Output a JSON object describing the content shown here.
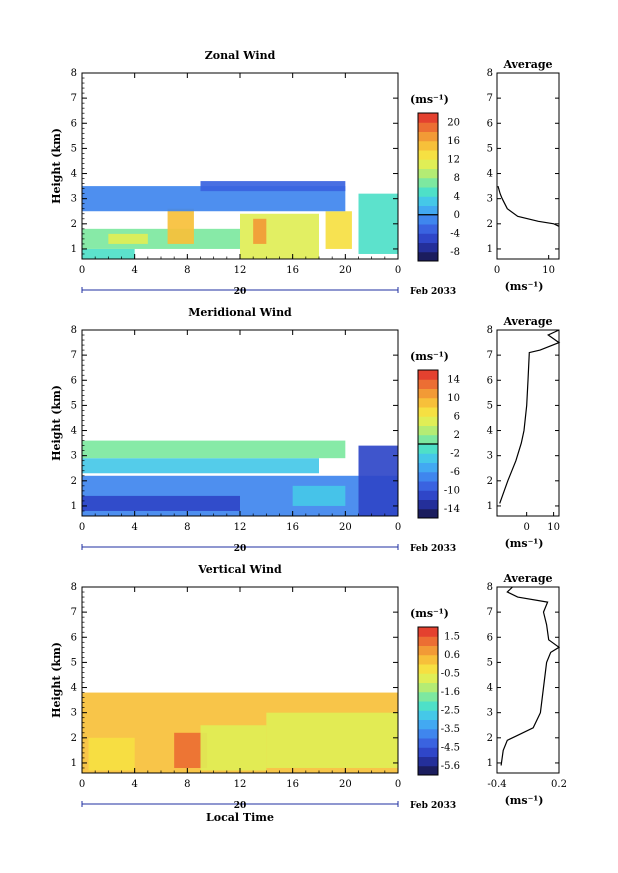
{
  "chart_data": [
    {
      "type": "heatmap",
      "title": "Zonal Wind",
      "ylabel": "Height (km)",
      "x_ticks": [
        "0",
        "4",
        "8",
        "12",
        "16",
        "20",
        "0"
      ],
      "y_ticks": [
        "1",
        "2",
        "3",
        "4",
        "5",
        "6",
        "7",
        "8"
      ],
      "xlim": [
        0,
        24
      ],
      "ylim": [
        0.6,
        8
      ],
      "date_label": "Feb 2033",
      "day_label": "20",
      "colorbar": {
        "unit": "(ms⁻¹)",
        "ticks": [
          "20",
          "16",
          "12",
          "8",
          "4",
          "0",
          "-4",
          "-8"
        ],
        "min": -10,
        "max": 22,
        "zero_line": 0
      },
      "regions": [
        {
          "t0": 0.0,
          "t1": 4.0,
          "h0": 0.6,
          "h1": 1.0,
          "v": 4
        },
        {
          "t0": 0.0,
          "t1": 12.0,
          "h0": 1.0,
          "h1": 1.8,
          "v": 6
        },
        {
          "t0": 2.0,
          "t1": 5.0,
          "h0": 1.2,
          "h1": 1.6,
          "v": 10
        },
        {
          "t0": 6.5,
          "t1": 8.5,
          "h0": 1.2,
          "h1": 2.6,
          "v": 14
        },
        {
          "t0": 12.0,
          "t1": 18.0,
          "h0": 0.6,
          "h1": 2.4,
          "v": 10
        },
        {
          "t0": 13.0,
          "t1": 14.0,
          "h0": 1.2,
          "h1": 2.2,
          "v": 16
        },
        {
          "t0": 18.5,
          "t1": 20.5,
          "h0": 1.0,
          "h1": 2.5,
          "v": 12
        },
        {
          "t0": 21.0,
          "t1": 24.0,
          "h0": 0.8,
          "h1": 3.2,
          "v": 5
        },
        {
          "t0": 0.0,
          "t1": 20.0,
          "h0": 2.5,
          "h1": 3.5,
          "v": -2
        },
        {
          "t0": 9.0,
          "t1": 20.0,
          "h0": 3.3,
          "h1": 3.7,
          "v": -3
        }
      ],
      "average_profile": {
        "title": "Average",
        "xlabel": "(ms⁻¹)",
        "x_ticks": [
          "0",
          "10"
        ],
        "xlim": [
          0,
          12
        ],
        "ylim": [
          0.6,
          8
        ],
        "y_ticks": [
          "1",
          "2",
          "3",
          "4",
          "5",
          "6",
          "7",
          "8"
        ],
        "points": [
          [
            0.2,
            3.5
          ],
          [
            0.6,
            3.2
          ],
          [
            1.0,
            3.0
          ],
          [
            2.0,
            2.6
          ],
          [
            4.0,
            2.3
          ],
          [
            8.0,
            2.1
          ],
          [
            11.0,
            2.0
          ],
          [
            12.0,
            1.9
          ]
        ]
      }
    },
    {
      "type": "heatmap",
      "title": "Meridional Wind",
      "ylabel": "Height (km)",
      "x_ticks": [
        "0",
        "4",
        "8",
        "12",
        "16",
        "20",
        "0"
      ],
      "y_ticks": [
        "1",
        "2",
        "3",
        "4",
        "5",
        "6",
        "7",
        "8"
      ],
      "xlim": [
        0,
        24
      ],
      "ylim": [
        0.6,
        8
      ],
      "date_label": "Feb 2033",
      "day_label": "20",
      "colorbar": {
        "unit": "(ms⁻¹)",
        "ticks": [
          "14",
          "10",
          "6",
          "2",
          "-2",
          "-6",
          "-10",
          "-14"
        ],
        "min": -16,
        "max": 16,
        "zero_line": 0
      },
      "regions": [
        {
          "t0": 0.0,
          "t1": 24.0,
          "h0": 0.6,
          "h1": 2.2,
          "v": -8
        },
        {
          "t0": 0.0,
          "t1": 12.0,
          "h0": 0.8,
          "h1": 1.4,
          "v": -11
        },
        {
          "t0": 16.0,
          "t1": 20.0,
          "h0": 1.0,
          "h1": 1.8,
          "v": -4
        },
        {
          "t0": 21.0,
          "t1": 24.0,
          "h0": 0.6,
          "h1": 3.4,
          "v": -12
        },
        {
          "t0": 0.0,
          "t1": 18.0,
          "h0": 2.3,
          "h1": 2.9,
          "v": -3
        },
        {
          "t0": 0.0,
          "t1": 20.0,
          "h0": 2.9,
          "h1": 3.6,
          "v": 0.5
        }
      ],
      "average_profile": {
        "title": "Average",
        "xlabel": "(ms⁻¹)",
        "x_ticks": [
          "0",
          "10"
        ],
        "xlim": [
          -11,
          12
        ],
        "ylim": [
          0.6,
          8
        ],
        "y_ticks": [
          "1",
          "2",
          "3",
          "4",
          "5",
          "6",
          "7",
          "8"
        ],
        "points": [
          [
            -10.0,
            1.1
          ],
          [
            -7.0,
            2.0
          ],
          [
            -4.0,
            2.8
          ],
          [
            -2.0,
            3.5
          ],
          [
            -1.0,
            4.0
          ],
          [
            0.0,
            5.0
          ],
          [
            0.5,
            6.0
          ],
          [
            1.0,
            7.1
          ],
          [
            5.0,
            7.2
          ],
          [
            12.0,
            7.5
          ],
          [
            8.0,
            7.8
          ],
          [
            12.0,
            8.0
          ]
        ]
      }
    },
    {
      "type": "heatmap",
      "title": "Vertical Wind",
      "ylabel": "Height (km)",
      "xlabel": "Local Time",
      "x_ticks": [
        "0",
        "4",
        "8",
        "12",
        "16",
        "20",
        "0"
      ],
      "y_ticks": [
        "1",
        "2",
        "3",
        "4",
        "5",
        "6",
        "7",
        "8"
      ],
      "xlim": [
        0,
        24
      ],
      "ylim": [
        0.6,
        8
      ],
      "date_label": "Feb 2033",
      "day_label": "20",
      "colorbar": {
        "unit": "(ms⁻¹)",
        "ticks": [
          "1.5",
          "0.6",
          "-0.5",
          "-1.6",
          "-2.5",
          "-3.5",
          "-4.5",
          "-5.6"
        ],
        "min": -6.2,
        "max": 2.0,
        "zero_line": null
      },
      "regions": [
        {
          "t0": 0.0,
          "t1": 24.0,
          "h0": 0.6,
          "h1": 3.8,
          "v": 0.3
        },
        {
          "t0": 0.5,
          "t1": 4.0,
          "h0": 0.7,
          "h1": 2.0,
          "v": -0.3
        },
        {
          "t0": 7.0,
          "t1": 9.5,
          "h0": 0.8,
          "h1": 2.2,
          "v": 1.0
        },
        {
          "t0": 9.0,
          "t1": 14.0,
          "h0": 0.7,
          "h1": 2.5,
          "v": -1.0
        },
        {
          "t0": 14.0,
          "t1": 24.0,
          "h0": 0.8,
          "h1": 3.0,
          "v": -0.6
        }
      ],
      "average_profile": {
        "title": "Average",
        "xlabel": "(ms⁻¹)",
        "x_ticks": [
          "-0.4",
          "0.2"
        ],
        "xlim": [
          -0.4,
          0.2
        ],
        "ylim": [
          0.6,
          8
        ],
        "y_ticks": [
          "1",
          "2",
          "3",
          "4",
          "5",
          "6",
          "7",
          "8"
        ],
        "points": [
          [
            -0.36,
            0.9
          ],
          [
            -0.34,
            1.5
          ],
          [
            -0.3,
            1.9
          ],
          [
            -0.2,
            2.1
          ],
          [
            -0.05,
            2.4
          ],
          [
            0.02,
            3.0
          ],
          [
            0.05,
            4.0
          ],
          [
            0.08,
            5.0
          ],
          [
            0.12,
            5.4
          ],
          [
            0.2,
            5.6
          ],
          [
            0.1,
            5.9
          ],
          [
            0.08,
            6.5
          ],
          [
            0.05,
            7.0
          ],
          [
            0.09,
            7.4
          ],
          [
            -0.2,
            7.6
          ],
          [
            -0.3,
            7.8
          ],
          [
            -0.25,
            8.0
          ]
        ]
      }
    }
  ]
}
